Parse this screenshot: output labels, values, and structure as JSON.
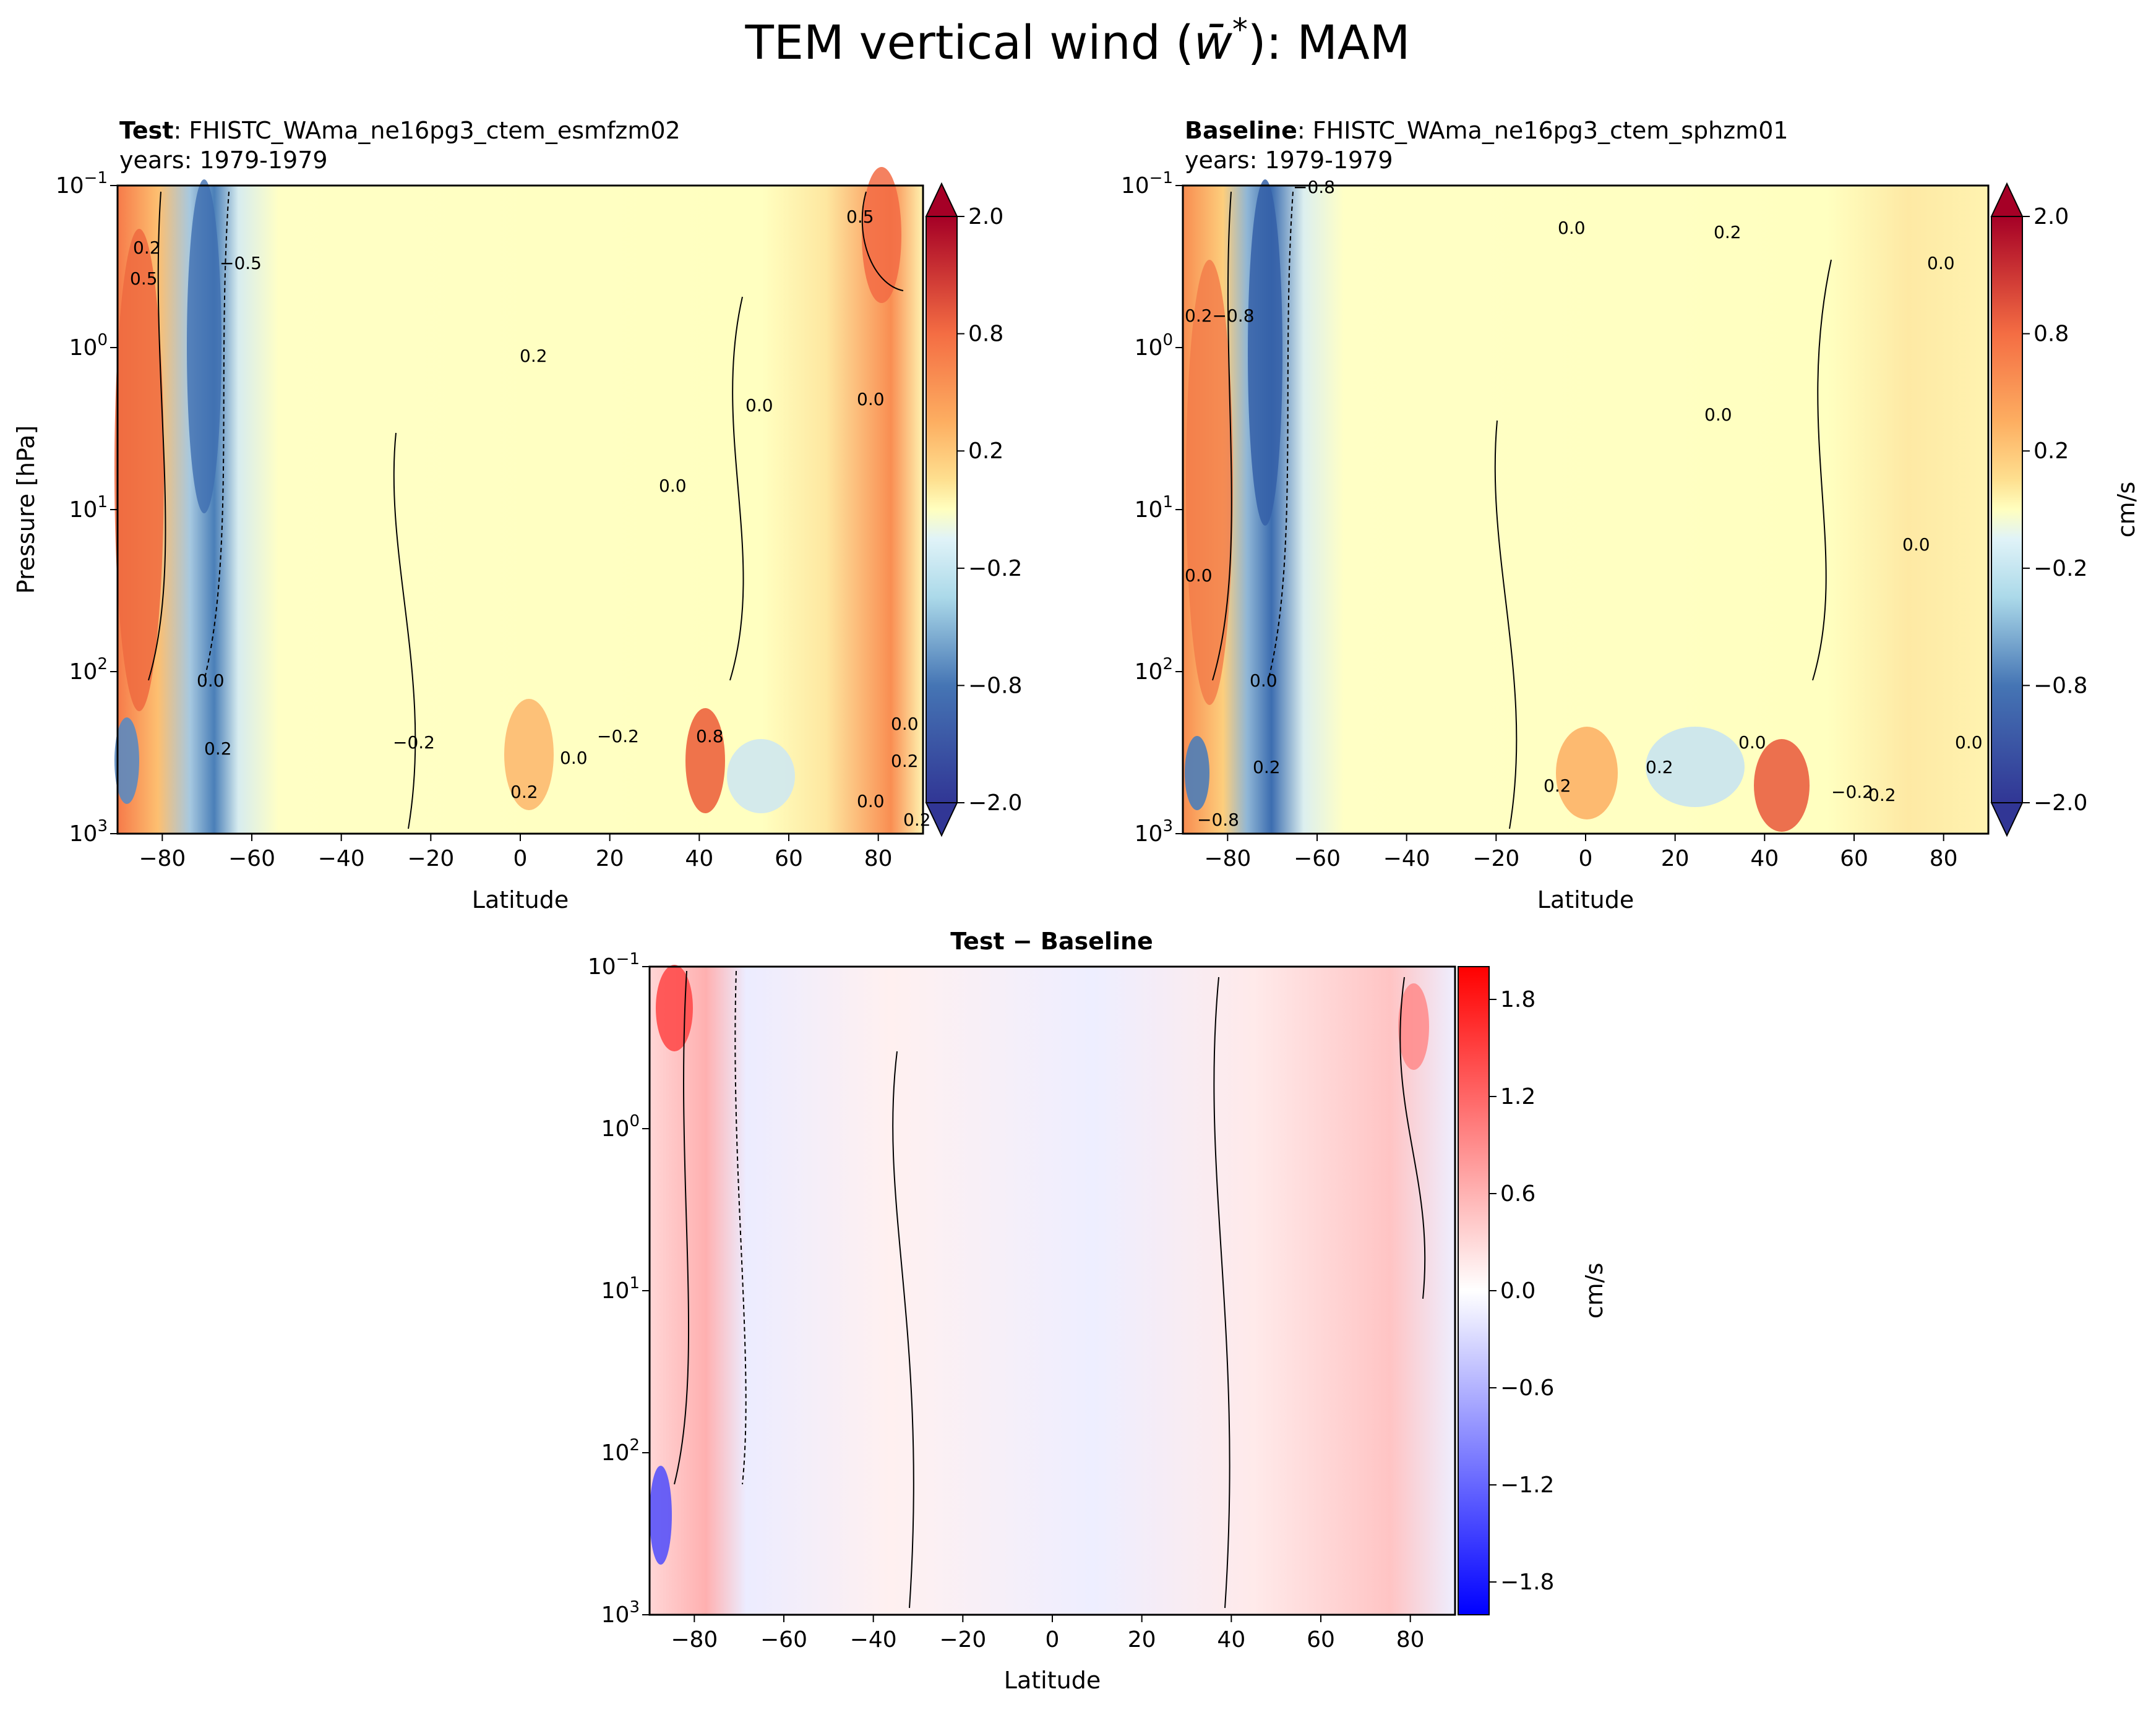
{
  "figure": {
    "title": "TEM vertical wind (w̄*): MAM",
    "title_main": "TEM vertical wind (",
    "title_w": "w̄",
    "title_star": "*",
    "title_tail": "): MAM"
  },
  "chart_data": [
    {
      "type": "contour",
      "panel": "test",
      "title_bold": "Test",
      "title_rest": ": FHISTC_WAma_ne16pg3_ctem_esmfzm02",
      "years": "years: 1979-1979",
      "xlabel": "Latitude",
      "ylabel": "Pressure [hPa]",
      "x_ticks": [
        -80,
        -60,
        -40,
        -20,
        0,
        20,
        40,
        60,
        80
      ],
      "xlim": [
        -90,
        90
      ],
      "ylim": [
        1000,
        0.1
      ],
      "y_ticks": [
        {
          "base": "10",
          "exp": "−1"
        },
        {
          "base": "10",
          "exp": "0"
        },
        {
          "base": "10",
          "exp": "1"
        },
        {
          "base": "10",
          "exp": "2"
        },
        {
          "base": "10",
          "exp": "3"
        }
      ],
      "colorbar": {
        "ticks": [
          "2.0",
          "0.8",
          "0.2",
          "−0.2",
          "−0.8",
          "−2.0"
        ],
        "label": "",
        "extend": "both"
      },
      "contour_labels": [
        "0.2",
        "0.5",
        "−0.5",
        "0.2",
        "0.0",
        "0.0",
        "0.0",
        "0.5",
        "0.0",
        "−0.2",
        "0.2",
        "0.2",
        "−0.2",
        "0.0",
        "0.0",
        "0.8",
        "0.2",
        "0.2",
        "0.0"
      ]
    },
    {
      "type": "contour",
      "panel": "baseline",
      "title_bold": "Baseline",
      "title_rest": ": FHISTC_WAma_ne16pg3_ctem_sphzm01",
      "years": "years: 1979-1979",
      "xlabel": "Latitude",
      "ylabel": "",
      "x_ticks": [
        -80,
        -60,
        -40,
        -20,
        0,
        20,
        40,
        60,
        80
      ],
      "xlim": [
        -90,
        90
      ],
      "ylim": [
        1000,
        0.1
      ],
      "y_ticks": [
        {
          "base": "10",
          "exp": "−1"
        },
        {
          "base": "10",
          "exp": "0"
        },
        {
          "base": "10",
          "exp": "1"
        },
        {
          "base": "10",
          "exp": "2"
        },
        {
          "base": "10",
          "exp": "3"
        }
      ],
      "colorbar": {
        "ticks": [
          "2.0",
          "0.8",
          "0.2",
          "−0.2",
          "−0.8",
          "−2.0"
        ],
        "label": "cm/s",
        "extend": "both"
      },
      "contour_labels": [
        "−0.8",
        "0.0",
        "0.2",
        "0.0",
        "0.2−0.8",
        "0.0",
        "0.0",
        "0.0",
        "0.2",
        "0.2",
        "0.2",
        "0.0",
        "0.2",
        "0.0",
        "−0.2",
        "0.0",
        "−0.8"
      ]
    },
    {
      "type": "contour",
      "panel": "difference",
      "title_bold": "Test",
      "title_rest": " − Baseline",
      "years": "",
      "xlabel": "Latitude",
      "ylabel": "",
      "x_ticks": [
        -80,
        -60,
        -40,
        -20,
        0,
        20,
        40,
        60,
        80
      ],
      "xlim": [
        -90,
        90
      ],
      "ylim": [
        1000,
        0.1
      ],
      "y_ticks": [
        {
          "base": "10",
          "exp": "−1"
        },
        {
          "base": "10",
          "exp": "0"
        },
        {
          "base": "10",
          "exp": "1"
        },
        {
          "base": "10",
          "exp": "2"
        },
        {
          "base": "10",
          "exp": "3"
        }
      ],
      "colorbar": {
        "ticks": [
          "1.8",
          "1.2",
          "0.6",
          "0.0",
          "−0.6",
          "−1.2",
          "−1.8"
        ],
        "label": "cm/s",
        "extend": "neither"
      },
      "contour_labels": []
    }
  ],
  "colors": {
    "div_low": "#313695",
    "div_high": "#a50026",
    "neutral": "#ffffbf",
    "bwr_low": "#0000ff",
    "bwr_high": "#ff0000",
    "bwr_mid": "#ffffff"
  }
}
